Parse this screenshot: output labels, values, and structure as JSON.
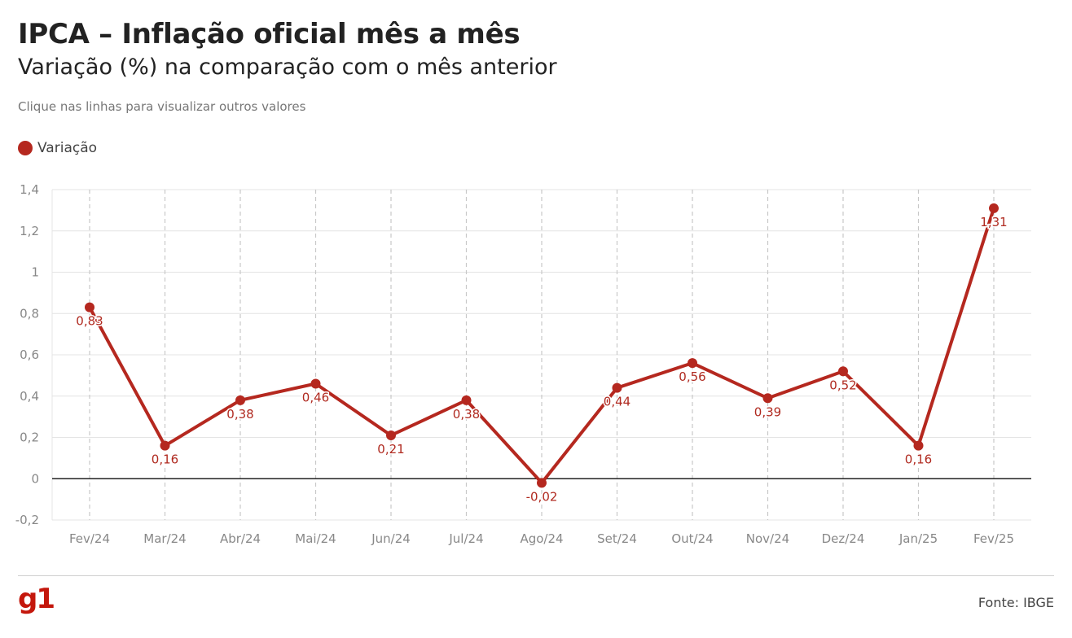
{
  "header": {
    "title": "IPCA – Inflação oficial mês a mês",
    "subtitle": "Variação (%) na comparação com o mês anterior",
    "note": "Clique nas linhas para visualizar outros valores"
  },
  "legend": {
    "label": "Variação"
  },
  "colors": {
    "series": "#b5281f",
    "zero_line": "#222222",
    "grid": "#e4e4e4",
    "vgrid": "#c8c8c8"
  },
  "footer": {
    "logo": "g1",
    "source": "Fonte: IBGE"
  },
  "chart_data": {
    "type": "line",
    "title": "IPCA – Inflação oficial mês a mês",
    "subtitle": "Variação (%) na comparação com o mês anterior",
    "categories": [
      "Fev/24",
      "Mar/24",
      "Abr/24",
      "Mai/24",
      "Jun/24",
      "Jul/24",
      "Ago/24",
      "Set/24",
      "Out/24",
      "Nov/24",
      "Dez/24",
      "Jan/25",
      "Fev/25"
    ],
    "series": [
      {
        "name": "Variação",
        "values": [
          0.83,
          0.16,
          0.38,
          0.46,
          0.21,
          0.38,
          -0.02,
          0.44,
          0.56,
          0.39,
          0.52,
          0.16,
          1.31
        ]
      }
    ],
    "data_labels": [
      "0,83",
      "0,16",
      "0,38",
      "0,46",
      "0,21",
      "0,38",
      "-0,02",
      "0,44",
      "0,56",
      "0,39",
      "0,52",
      "0,16",
      "1,31"
    ],
    "yticks": [
      -0.2,
      0,
      0.2,
      0.4,
      0.6,
      0.8,
      1,
      1.2,
      1.4
    ],
    "ytick_labels": [
      "-0,2",
      "0",
      "0,2",
      "0,4",
      "0,6",
      "0,8",
      "1",
      "1,2",
      "1,4"
    ],
    "ylim": [
      -0.2,
      1.4
    ],
    "grid": true,
    "legend_position": "top-left"
  }
}
